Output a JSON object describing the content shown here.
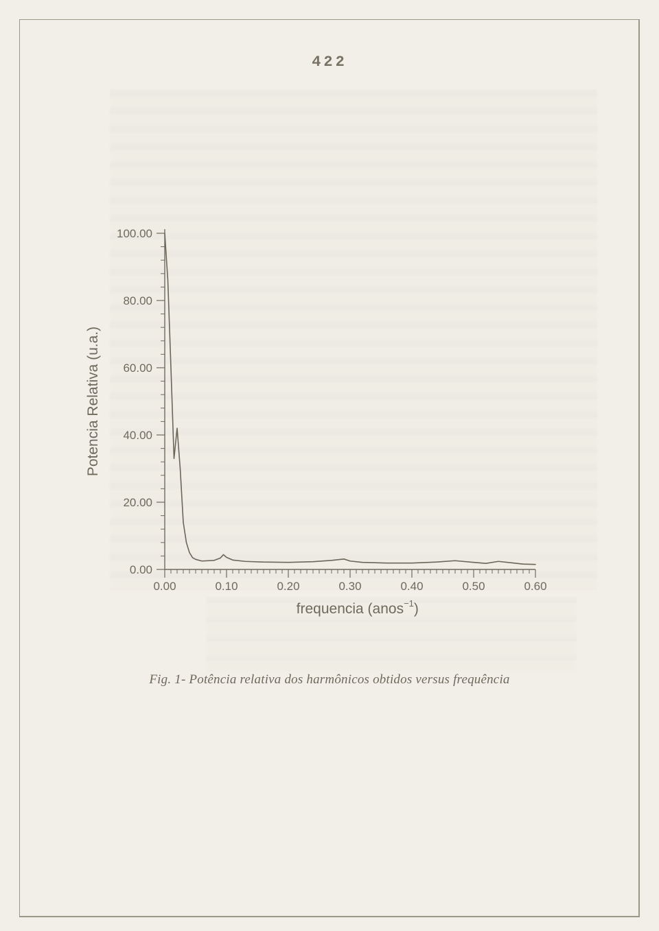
{
  "page": {
    "number": "422",
    "background_color": "#f2efe8",
    "border_color": "#9a9688"
  },
  "figure": {
    "caption": "Fig. 1- Potência relativa dos harmônicos obtidos versus frequência",
    "chart": {
      "type": "line",
      "xlabel_prefix": "frequencia  (anos",
      "xlabel_exponent": "−1",
      "xlabel_suffix": ")",
      "ylabel": "Potencia Relativa (u.a.)",
      "xlim": [
        0.0,
        0.6
      ],
      "ylim": [
        0.0,
        100.0
      ],
      "x_major_step": 0.1,
      "x_minor_per_major": 10,
      "y_major_step": 20.0,
      "y_minor_per_major": 5,
      "x_ticks": [
        "0.00",
        "0.10",
        "0.20",
        "0.30",
        "0.40",
        "0.50",
        "0.60"
      ],
      "y_ticks": [
        "0.00",
        "20.00",
        "40.00",
        "60.00",
        "80.00",
        "100.00"
      ],
      "line_color": "#6b6659",
      "line_width": 1.6,
      "axis_color": "#6f6a5d",
      "background_color": "#f2efe8",
      "x_axis_break_at_tick": 4,
      "label_fontsize": 21,
      "tick_fontsize": 17,
      "series": {
        "x": [
          0.0,
          0.005,
          0.01,
          0.015,
          0.02,
          0.025,
          0.03,
          0.035,
          0.04,
          0.045,
          0.05,
          0.06,
          0.08,
          0.09,
          0.095,
          0.1,
          0.11,
          0.13,
          0.16,
          0.2,
          0.24,
          0.27,
          0.29,
          0.3,
          0.32,
          0.36,
          0.4,
          0.44,
          0.47,
          0.5,
          0.52,
          0.54,
          0.56,
          0.58,
          0.6
        ],
        "y": [
          100,
          86,
          60,
          33,
          42,
          30,
          14,
          8,
          5,
          3.5,
          3,
          2.5,
          2.7,
          3.4,
          4.4,
          3.6,
          2.8,
          2.4,
          2.2,
          2.1,
          2.3,
          2.7,
          3.1,
          2.5,
          2.1,
          1.9,
          1.9,
          2.2,
          2.6,
          2.1,
          1.8,
          2.4,
          2.0,
          1.6,
          1.5
        ]
      }
    }
  }
}
